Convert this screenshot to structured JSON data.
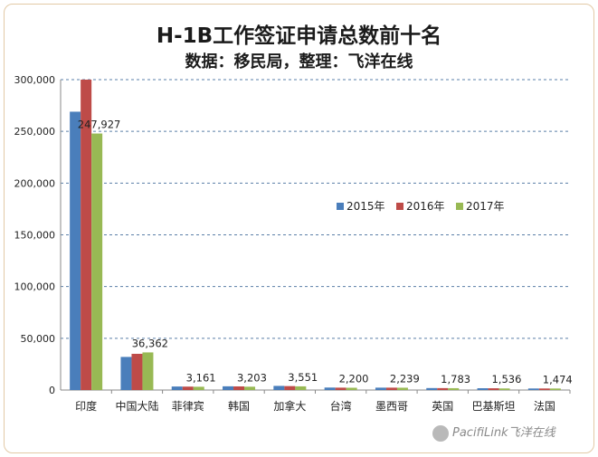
{
  "chart_data": {
    "type": "bar",
    "title": "H-1B工作签证申请总数前十名",
    "subtitle": "数据：移民局，整理：飞洋在线",
    "categories": [
      "印度",
      "中国大陆",
      "菲律宾",
      "韩国",
      "加拿大",
      "台湾",
      "墨西哥",
      "英国",
      "巴基斯坦",
      "法国"
    ],
    "series": [
      {
        "name": "2015年",
        "color": "#4a7ebb",
        "values": [
          269000,
          32000,
          3400,
          3600,
          4000,
          2400,
          2300,
          1900,
          1750,
          1500
        ]
      },
      {
        "name": "2016年",
        "color": "#be4b48",
        "values": [
          301000,
          35000,
          3300,
          3500,
          3800,
          2300,
          2300,
          1850,
          1700,
          1500
        ]
      },
      {
        "name": "2017年",
        "color": "#98b954",
        "values": [
          247927,
          36362,
          3161,
          3203,
          3551,
          2200,
          2239,
          1783,
          1536,
          1474
        ]
      }
    ],
    "data_labels": [
      "247,927",
      "36,362",
      "3,161",
      "3,203",
      "3,551",
      "2,200",
      "2,239",
      "1,783",
      "1,536",
      "1,474"
    ],
    "ylim": [
      0,
      300000
    ],
    "y_ticks": [
      "0",
      "50,000",
      "100,000",
      "150,000",
      "200,000",
      "250,000",
      "300,000"
    ],
    "xlabel": "",
    "ylabel": "",
    "grid": true,
    "legend_position": "center-right"
  },
  "watermark": {
    "text": "PacifiLink飞洋在线",
    "icon": "wechat-icon"
  }
}
